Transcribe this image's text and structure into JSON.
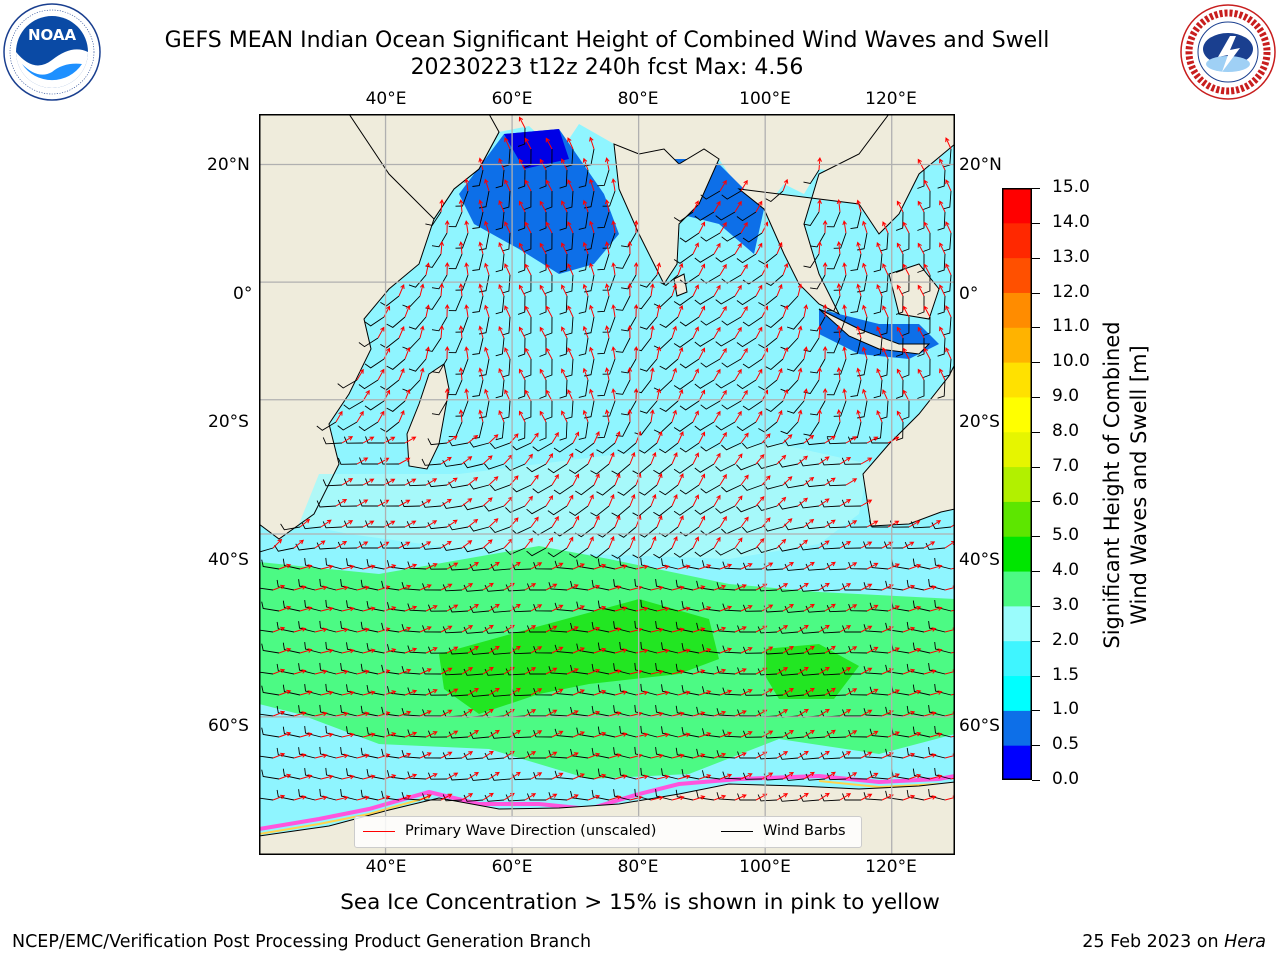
{
  "header": {
    "title_line1": "GEFS MEAN Indian Ocean Significant Height of Combined Wind Waves and Swell",
    "title_line2": "20230223 t12z 240h fcst   Max: 4.56"
  },
  "logos": {
    "left": {
      "name": "NOAA",
      "text": "NOAA",
      "ring_text": "NATIONAL OCEANIC AND ATMOSPHERIC ADMINISTRATION · U.S. DEPARTMENT OF COMMERCE"
    },
    "right": {
      "name": "National Weather Service",
      "ring_text": "NATIONAL WEATHER SERVICE"
    }
  },
  "map": {
    "lon_ticks": [
      "40°E",
      "60°E",
      "80°E",
      "100°E",
      "120°E"
    ],
    "lat_ticks": [
      "20°N",
      "0°",
      "20°S",
      "40°S",
      "60°S"
    ],
    "lon_values": [
      40,
      60,
      80,
      100,
      120
    ],
    "lat_values": [
      20,
      0,
      -20,
      -40,
      -60
    ],
    "extent": {
      "lon": [
        20,
        130
      ],
      "lat": [
        -70,
        28
      ]
    },
    "colors": {
      "land": "#efecdc",
      "grid": "#b0b0b0",
      "wave_arrow": "#ff0000",
      "barb": "#000000"
    }
  },
  "legend": {
    "wave": "Primary Wave Direction (unscaled)",
    "barbs": "Wind Barbs"
  },
  "colorbar": {
    "label_line1": "Significant Height of Combined",
    "label_line2": "Wind Waves and Swell [m]",
    "bounds": [
      0.0,
      0.5,
      1.0,
      1.5,
      2.0,
      3.0,
      4.0,
      5.0,
      6.0,
      7.0,
      8.0,
      9.0,
      10.0,
      11.0,
      12.0,
      13.0,
      14.0,
      15.0
    ],
    "tick_labels": [
      "0.0",
      "0.5",
      "1.0",
      "1.5",
      "2.0",
      "3.0",
      "4.0",
      "5.0",
      "6.0",
      "7.0",
      "8.0",
      "9.0",
      "10.0",
      "11.0",
      "12.0",
      "13.0",
      "14.0",
      "15.0"
    ],
    "colors": [
      "#0000ff",
      "#0d6fe8",
      "#00ffff",
      "#3ff5ff",
      "#9afcfc",
      "#4cfa84",
      "#00e600",
      "#5de600",
      "#b2f000",
      "#e6f500",
      "#ffff00",
      "#ffe100",
      "#ffb300",
      "#ff8c00",
      "#ff5000",
      "#ff2800",
      "#ff0000"
    ]
  },
  "annotation": "Sea Ice Concentration > 15% is shown in pink to yellow",
  "footer": {
    "left": "NCEP/EMC/Verification Post Processing Product Generation Branch",
    "right_prefix": "25 Feb 2023 on ",
    "right_host": "Hera"
  }
}
